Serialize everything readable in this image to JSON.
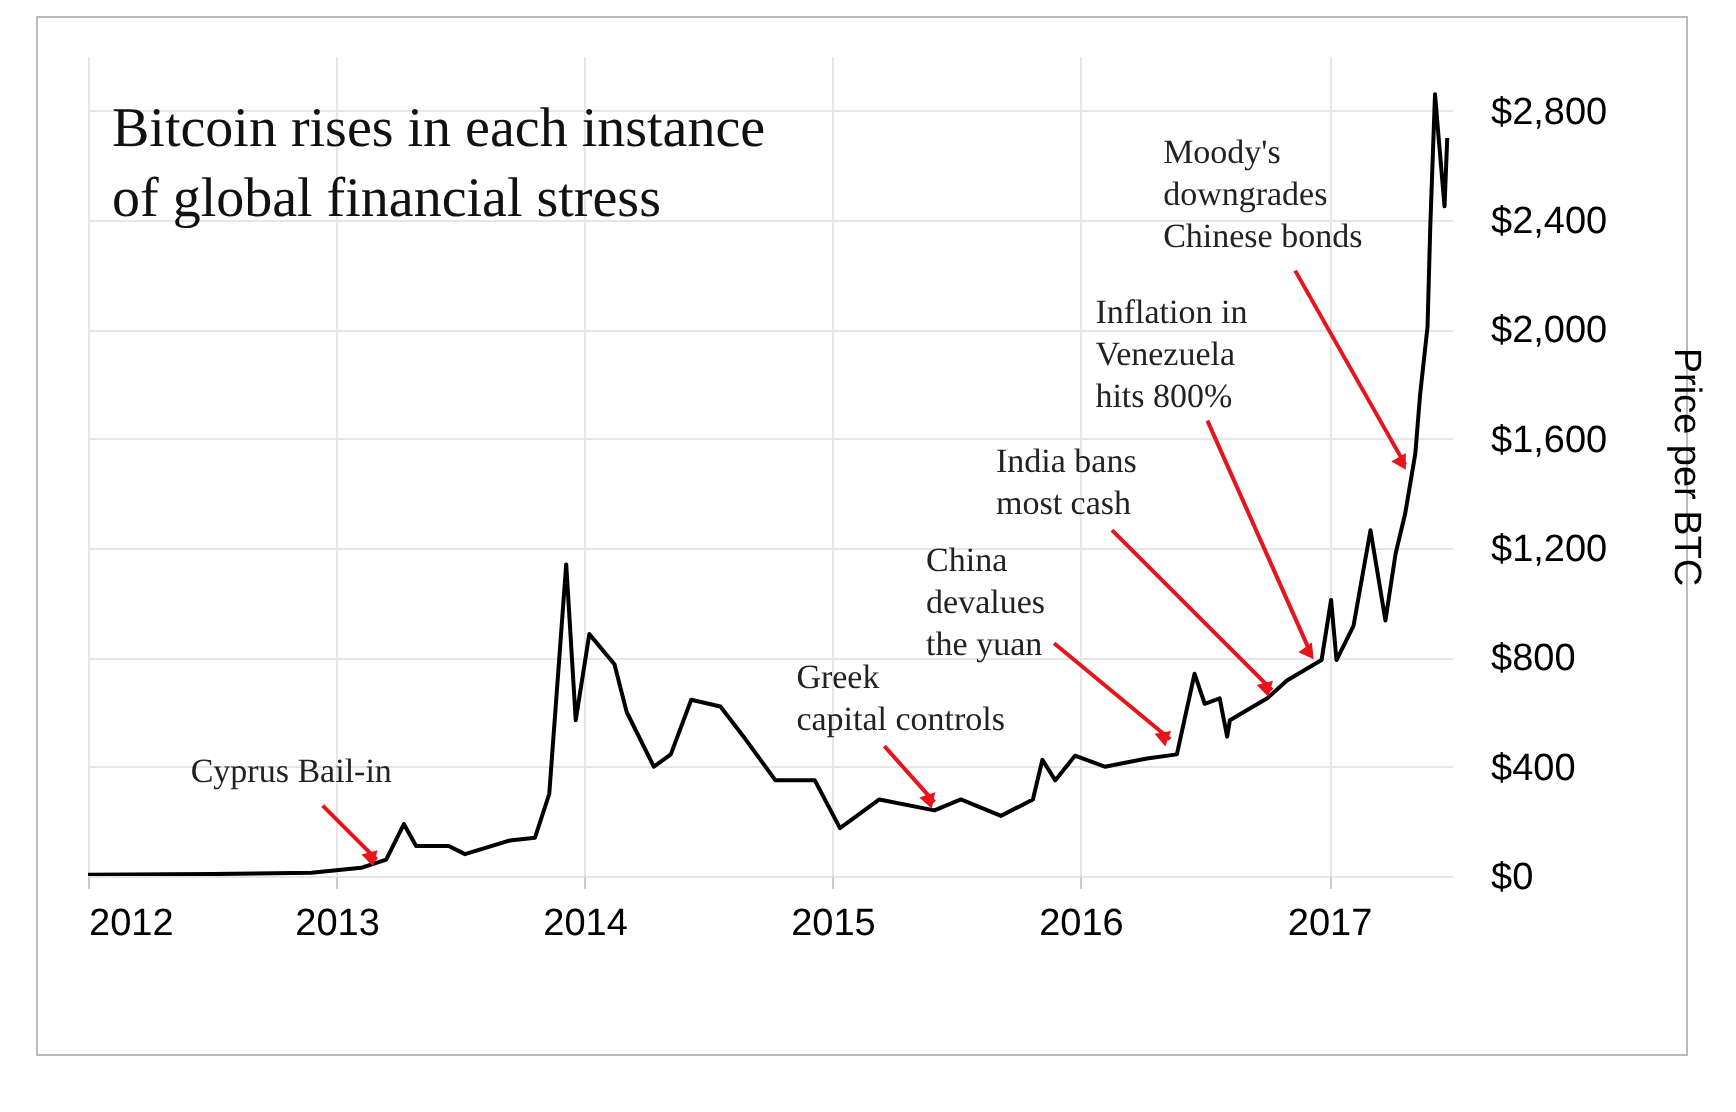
{
  "chart_data": {
    "type": "line",
    "title": "Bitcoin rises in each instance\nof global financial stress",
    "ylabel": "Price per BTC",
    "x": [
      "2012-01-01",
      "2012-07-01",
      "2012-11-25",
      "2013-02-06",
      "2013-03-15",
      "2013-04-10",
      "2013-04-28",
      "2013-06-15",
      "2013-07-09",
      "2013-09-13",
      "2013-10-20",
      "2013-11-10",
      "2013-12-05",
      "2013-12-19",
      "2014-01-08",
      "2014-02-14",
      "2014-03-04",
      "2014-04-13",
      "2014-05-08",
      "2014-06-07",
      "2014-07-20",
      "2014-08-26",
      "2014-10-09",
      "2014-12-06",
      "2015-01-12",
      "2015-03-11",
      "2015-05-31",
      "2015-07-09",
      "2015-09-06",
      "2015-10-23",
      "2015-11-06",
      "2015-11-25",
      "2015-12-24",
      "2016-02-06",
      "2016-04-08",
      "2016-05-22",
      "2016-06-17",
      "2016-07-02",
      "2016-07-24",
      "2016-08-04",
      "2016-08-08",
      "2016-10-02",
      "2016-10-31",
      "2016-12-21",
      "2017-01-04",
      "2017-01-12",
      "2017-02-06",
      "2017-03-03",
      "2017-03-25",
      "2017-04-09",
      "2017-04-23",
      "2017-05-08",
      "2017-05-15",
      "2017-05-26",
      "2017-05-30",
      "2017-06-06",
      "2017-06-10",
      "2017-06-20",
      "2017-06-24"
    ],
    "series": [
      {
        "color": "#000000",
        "values": [
          5,
          7,
          12,
          30,
          60,
          190,
          110,
          110,
          80,
          130,
          140,
          300,
          1140,
          570,
          885,
          775,
          600,
          400,
          445,
          645,
          620,
          500,
          350,
          350,
          175,
          280,
          240,
          280,
          220,
          280,
          425,
          350,
          440,
          400,
          430,
          445,
          740,
          630,
          650,
          510,
          570,
          650,
          715,
          790,
          1010,
          790,
          915,
          1265,
          935,
          1180,
          1325,
          1545,
          1760,
          2010,
          2375,
          2860,
          2740,
          2450,
          2700
        ]
      }
    ],
    "xlim": [
      "2012-01-01",
      "2017-07-01"
    ],
    "xticks": [
      {
        "value": "2012-01-01",
        "label": "2012"
      },
      {
        "value": "2013-01-01",
        "label": "2013"
      },
      {
        "value": "2014-01-01",
        "label": "2014"
      },
      {
        "value": "2015-01-01",
        "label": "2015"
      },
      {
        "value": "2016-01-01",
        "label": "2016"
      },
      {
        "value": "2017-01-01",
        "label": "2017"
      }
    ],
    "ylim": [
      0,
      3000
    ],
    "yticks": [
      {
        "value": 0,
        "label": "$0"
      },
      {
        "value": 400,
        "label": "$400"
      },
      {
        "value": 800,
        "label": "$800"
      },
      {
        "value": 1200,
        "label": "$1,200"
      },
      {
        "value": 1600,
        "label": "$1,600"
      },
      {
        "value": 2000,
        "label": "$2,000"
      },
      {
        "value": 2400,
        "label": "$2,400"
      },
      {
        "value": 2800,
        "label": "$2,800"
      }
    ],
    "grid": true,
    "annotations": [
      {
        "text": "Cyprus Bail-in",
        "x": "2013-03-01",
        "y": 60
      },
      {
        "text": "Greek\ncapital controls",
        "x": "2015-05-31",
        "y": 270
      },
      {
        "text": "China\ndevalues\nthe yuan",
        "x": "2016-05-12",
        "y": 500
      },
      {
        "text": "India bans\nmost cash",
        "x": "2016-10-09",
        "y": 680
      },
      {
        "text": "Inflation in\nVenezuela\nhits 800%",
        "x": "2016-12-06",
        "y": 810
      },
      {
        "text": "Moody's\ndowngrades\nChinese bonds",
        "x": "2017-04-23",
        "y": 1505
      }
    ]
  }
}
